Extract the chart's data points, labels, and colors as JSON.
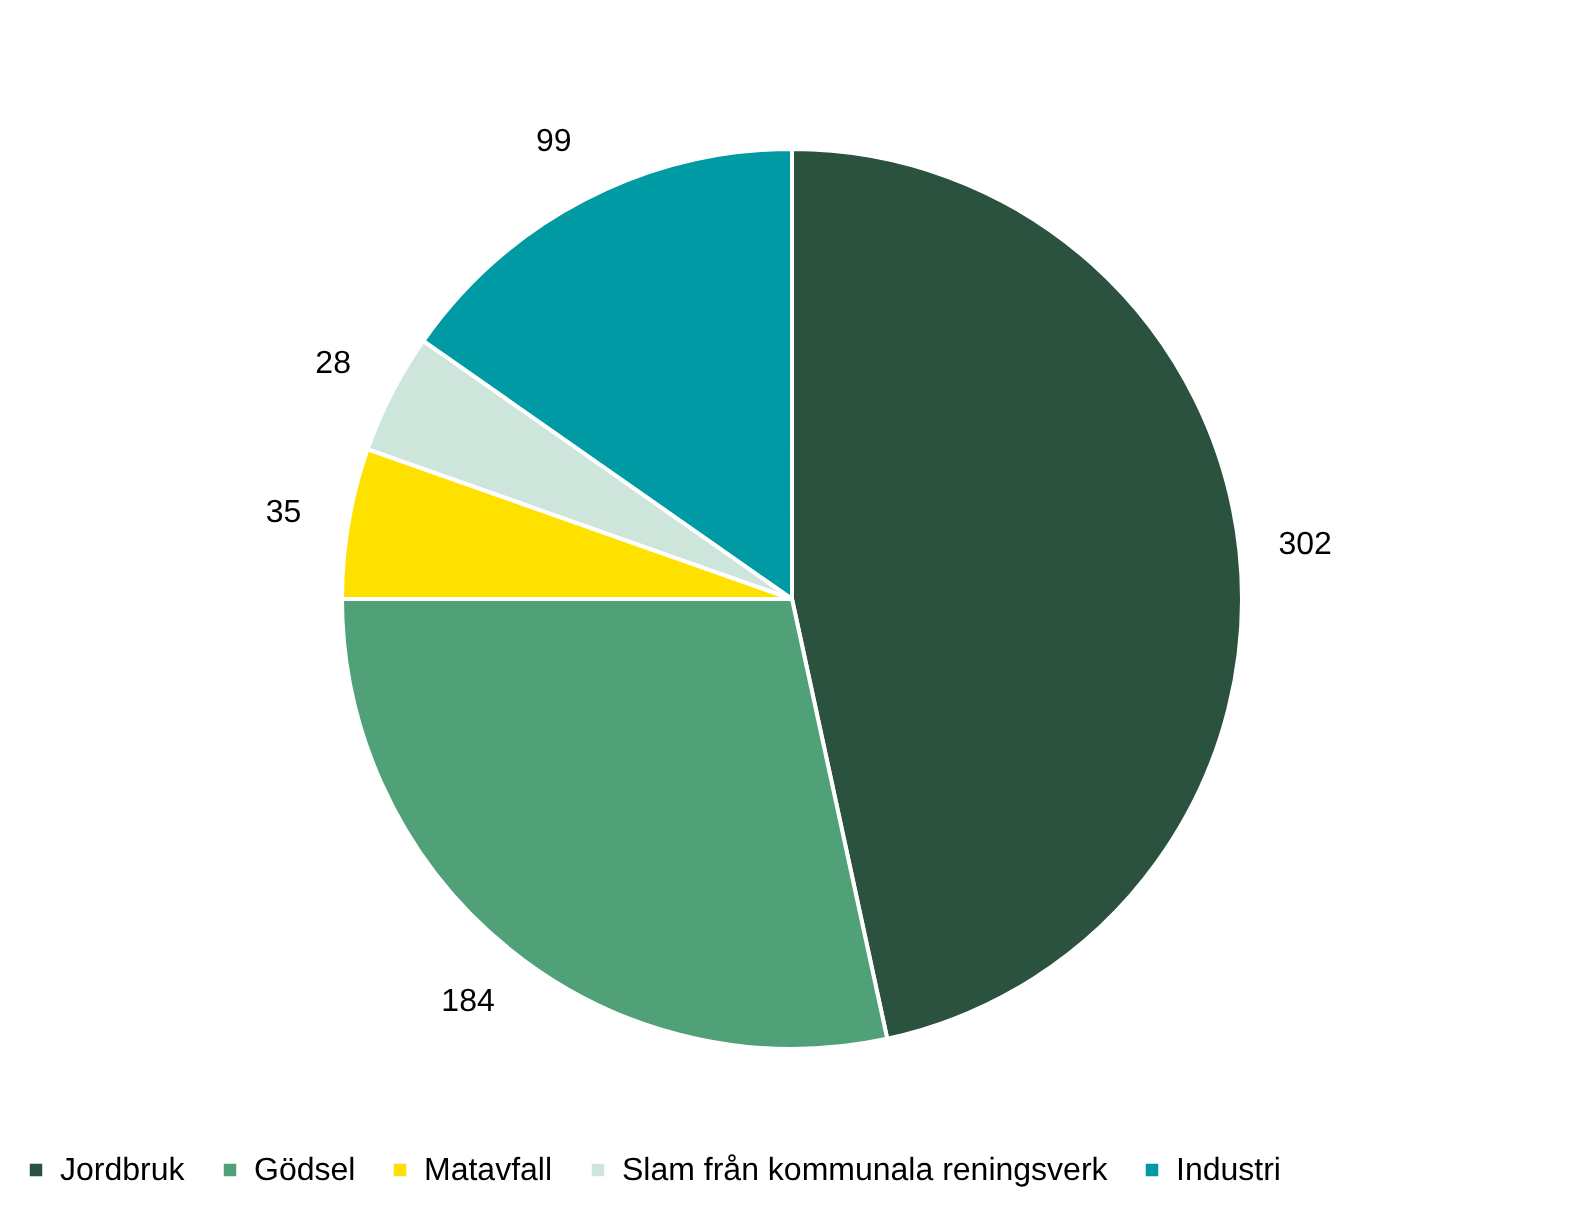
{
  "chart_data": {
    "type": "pie",
    "categories": [
      "Jordbruk",
      "Gödsel",
      "Matavfall",
      "Slam från kommunala reningsverk",
      "Industri"
    ],
    "values": [
      302,
      184,
      35,
      28,
      99
    ],
    "colors": [
      "#2a523e",
      "#50a078",
      "#ffe100",
      "#cde5da",
      "#009aa4"
    ],
    "data_labels": true,
    "legend": "bottom"
  }
}
